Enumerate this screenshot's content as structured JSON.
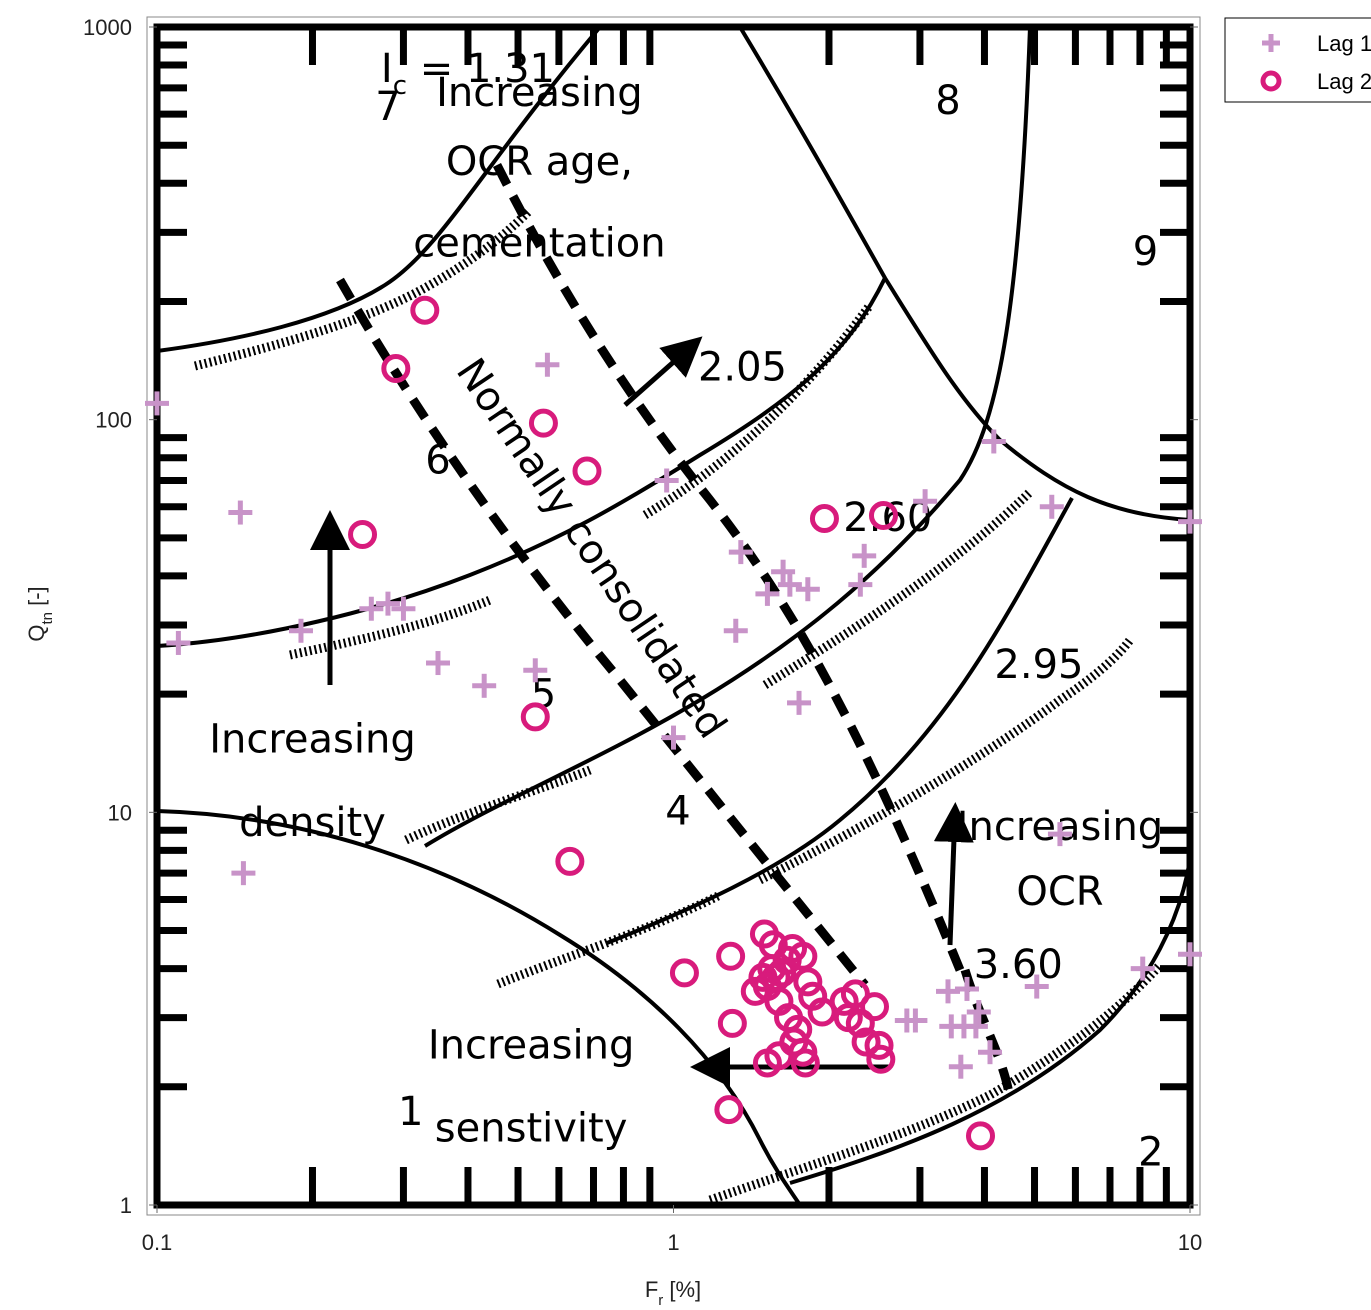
{
  "chart_data": {
    "type": "scatter",
    "title": "",
    "xlabel": "F",
    "xlabel_sub": "r",
    "xlabel_unit": " [%]",
    "ylabel": "Q",
    "ylabel_sub": "tn",
    "ylabel_unit": " [-]",
    "x_scale": "log",
    "y_scale": "log",
    "xlim": [
      0.1,
      10
    ],
    "ylim": [
      1,
      1000
    ],
    "x_ticks": [
      "0.1",
      "1",
      "10"
    ],
    "y_ticks": [
      "1",
      "10",
      "100",
      "1000"
    ],
    "legend_position": "outside top-right",
    "zone_labels": [
      {
        "text": "1",
        "x": 0.31,
        "y": 1.6
      },
      {
        "text": "2",
        "x": 8.4,
        "y": 1.26
      },
      {
        "text": "4",
        "x": 1.02,
        "y": 9.3
      },
      {
        "text": "5",
        "x": 0.56,
        "y": 18.5
      },
      {
        "text": "6",
        "x": 0.35,
        "y": 73
      },
      {
        "text": "7",
        "x": 0.28,
        "y": 580
      },
      {
        "text": "8",
        "x": 3.4,
        "y": 600
      },
      {
        "text": "9",
        "x": 8.2,
        "y": 248
      }
    ],
    "annotations": [
      {
        "text": "Increasing",
        "x": 0.55,
        "y": 630,
        "kind": "ocr_age_1"
      },
      {
        "text": "OCR  age,",
        "x": 0.55,
        "y": 420,
        "kind": "ocr_age_2"
      },
      {
        "text": "cementation",
        "x": 0.55,
        "y": 260,
        "kind": "ocr_age_3"
      },
      {
        "text": "2.05",
        "x": 1.36,
        "y": 126
      },
      {
        "text": "2.60",
        "x": 2.6,
        "y": 52
      },
      {
        "text": "2.95",
        "x": 5.1,
        "y": 22
      },
      {
        "text": "3.60",
        "x": 4.65,
        "y": 3.78
      },
      {
        "text": "Increasing",
        "x": 0.2,
        "y": 14.2
      },
      {
        "text": "density",
        "x": 0.2,
        "y": 8.7
      },
      {
        "text": "Increasing",
        "x": 5.6,
        "y": 8.5
      },
      {
        "text": "OCR",
        "x": 5.6,
        "y": 5.8
      },
      {
        "text": "Increasing",
        "x": 0.53,
        "y": 2.36
      },
      {
        "text": "senstivity",
        "x": 0.53,
        "y": 1.45
      }
    ],
    "ic_label": {
      "text": "I",
      "sub": "c",
      "rest": " = 1.31"
    },
    "nc_label": "Normally consolidated",
    "series": [
      {
        "name": "Lag 1",
        "marker": "plus",
        "color": "#c893c8",
        "points": [
          [
            0.1,
            110
          ],
          [
            0.145,
            58
          ],
          [
            0.11,
            27
          ],
          [
            0.147,
            7
          ],
          [
            0.19,
            29
          ],
          [
            0.26,
            33
          ],
          [
            0.28,
            34
          ],
          [
            0.3,
            33
          ],
          [
            0.35,
            24
          ],
          [
            0.43,
            21
          ],
          [
            0.54,
            23
          ],
          [
            0.57,
            138
          ],
          [
            0.97,
            70
          ],
          [
            1.0,
            15.5
          ],
          [
            1.35,
            46
          ],
          [
            1.52,
            36
          ],
          [
            1.68,
            38
          ],
          [
            1.63,
            41
          ],
          [
            1.82,
            37
          ],
          [
            1.75,
            19
          ],
          [
            1.32,
            29
          ],
          [
            2.3,
            38
          ],
          [
            2.34,
            45
          ],
          [
            3.07,
            62
          ],
          [
            4.17,
            88
          ],
          [
            5.4,
            60
          ],
          [
            10.0,
            55
          ],
          [
            2.83,
            2.95
          ],
          [
            2.94,
            2.95
          ],
          [
            3.45,
            2.85
          ],
          [
            3.65,
            2.85
          ],
          [
            3.4,
            3.5
          ],
          [
            3.7,
            3.55
          ],
          [
            3.9,
            3.1
          ],
          [
            3.6,
            2.25
          ],
          [
            4.1,
            2.45
          ],
          [
            3.85,
            2.85
          ],
          [
            5.05,
            3.6
          ],
          [
            5.6,
            8.8
          ],
          [
            8.1,
            4.0
          ],
          [
            10.0,
            4.35
          ]
        ]
      },
      {
        "name": "Lag 2",
        "marker": "circle",
        "color": "#d81b7c",
        "points": [
          [
            0.33,
            190
          ],
          [
            0.29,
            135
          ],
          [
            0.25,
            51
          ],
          [
            0.56,
            98
          ],
          [
            0.68,
            74
          ],
          [
            0.54,
            17.5
          ],
          [
            0.63,
            7.5
          ],
          [
            1.05,
            3.9
          ],
          [
            1.28,
            1.75
          ],
          [
            1.96,
            56
          ],
          [
            2.55,
            57
          ],
          [
            1.29,
            4.3
          ],
          [
            1.3,
            2.9
          ],
          [
            1.5,
            4.9
          ],
          [
            1.55,
            4.0
          ],
          [
            1.58,
            3.8
          ],
          [
            1.62,
            3.9
          ],
          [
            1.66,
            4.2
          ],
          [
            1.52,
            3.6
          ],
          [
            1.44,
            3.5
          ],
          [
            1.6,
            3.3
          ],
          [
            1.7,
            4.5
          ],
          [
            1.67,
            3.0
          ],
          [
            1.78,
            4.3
          ],
          [
            1.74,
            2.8
          ],
          [
            1.82,
            3.7
          ],
          [
            1.86,
            3.4
          ],
          [
            1.71,
            2.6
          ],
          [
            1.6,
            2.4
          ],
          [
            1.52,
            2.3
          ],
          [
            1.78,
            2.45
          ],
          [
            1.94,
            3.1
          ],
          [
            2.14,
            3.3
          ],
          [
            2.18,
            3.0
          ],
          [
            2.3,
            2.9
          ],
          [
            2.45,
            3.2
          ],
          [
            2.36,
            2.6
          ],
          [
            2.5,
            2.55
          ],
          [
            2.52,
            2.35
          ],
          [
            2.25,
            3.45
          ],
          [
            1.49,
            3.8
          ],
          [
            1.56,
            4.6
          ],
          [
            1.8,
            2.3
          ],
          [
            3.93,
            1.5
          ]
        ]
      }
    ]
  }
}
